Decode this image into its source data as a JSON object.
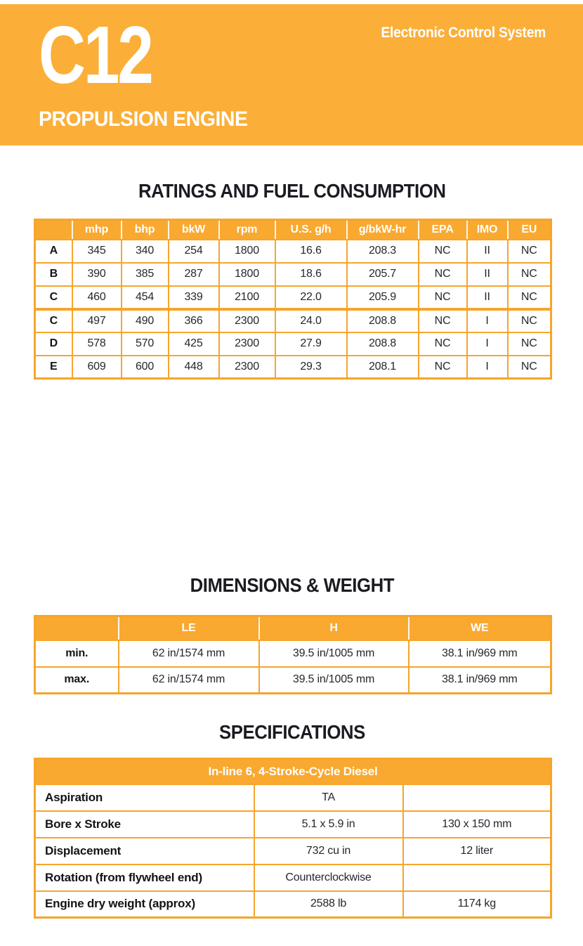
{
  "colors": {
    "masthead_bg": "#FBAF38",
    "table_header_bg": "#F9A930",
    "table_border": "#F6A52C",
    "heading_text": "#1B1B22",
    "cell_text": "#26262E"
  },
  "header": {
    "model": "C12",
    "tagline": "Electronic Control System",
    "subtitle": "PROPULSION ENGINE"
  },
  "ratings": {
    "title": "RATINGS AND FUEL CONSUMPTION",
    "columns": [
      "",
      "mhp",
      "bhp",
      "bkW",
      "rpm",
      "U.S. g/h",
      "g/bkW-hr",
      "EPA",
      "IMO",
      "EU"
    ],
    "rows": [
      {
        "label": "A",
        "values": [
          "345",
          "340",
          "254",
          "1800",
          "16.6",
          "208.3",
          "NC",
          "II",
          "NC"
        ]
      },
      {
        "label": "B",
        "values": [
          "390",
          "385",
          "287",
          "1800",
          "18.6",
          "205.7",
          "NC",
          "II",
          "NC"
        ]
      },
      {
        "label": "C",
        "values": [
          "460",
          "454",
          "339",
          "2100",
          "22.0",
          "205.9",
          "NC",
          "II",
          "NC"
        ]
      },
      {
        "label": "C",
        "values": [
          "497",
          "490",
          "366",
          "2300",
          "24.0",
          "208.8",
          "NC",
          "I",
          "NC"
        ]
      },
      {
        "label": "D",
        "values": [
          "578",
          "570",
          "425",
          "2300",
          "27.9",
          "208.8",
          "NC",
          "I",
          "NC"
        ]
      },
      {
        "label": "E",
        "values": [
          "609",
          "600",
          "448",
          "2300",
          "29.3",
          "208.1",
          "NC",
          "I",
          "NC"
        ]
      }
    ],
    "group_separator_row_index": 3
  },
  "dimensions": {
    "title": "DIMENSIONS & WEIGHT",
    "columns": [
      "",
      "LE",
      "H",
      "WE"
    ],
    "rows": [
      {
        "label": "min.",
        "values": [
          "62 in/1574 mm",
          "39.5 in/1005 mm",
          "38.1 in/969 mm"
        ]
      },
      {
        "label": "max.",
        "values": [
          "62 in/1574 mm",
          "39.5 in/1005 mm",
          "38.1 in/969 mm"
        ]
      }
    ]
  },
  "specifications": {
    "title": "SPECIFICATIONS",
    "table_header": "In-line 6, 4-Stroke-Cycle Diesel",
    "rows": [
      {
        "label": "Aspiration",
        "us": "TA",
        "metric": ""
      },
      {
        "label": "Bore x Stroke",
        "us": "5.1 x 5.9 in",
        "metric": "130 x 150 mm"
      },
      {
        "label": "Displacement",
        "us": "732 cu in",
        "metric": "12 liter"
      },
      {
        "label": "Rotation (from flywheel end)",
        "us": "Counterclockwise",
        "metric": ""
      },
      {
        "label": "Engine dry weight (approx)",
        "us": "2588 lb",
        "metric": "1174 kg"
      }
    ]
  }
}
